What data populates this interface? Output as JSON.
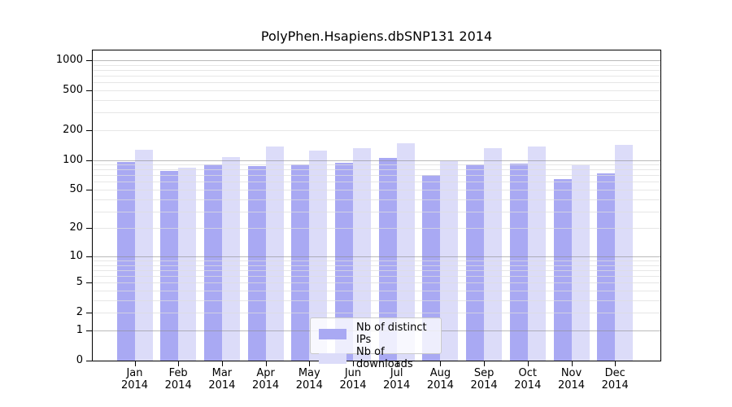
{
  "title": "PolyPhen.Hsapiens.dbSNP131 2014",
  "chart_data": {
    "type": "bar",
    "title": "PolyPhen.Hsapiens.dbSNP131 2014",
    "scale": "log10(1+x)",
    "grid": true,
    "legend_position": "bottom-center",
    "xlabel": "",
    "ylabel": "",
    "ylim": [
      0,
      1300
    ],
    "y_ticks": [
      0,
      1,
      2,
      5,
      10,
      20,
      50,
      100,
      200,
      500,
      1000
    ],
    "categories": [
      "Jan",
      "Feb",
      "Mar",
      "Apr",
      "May",
      "Jun",
      "Jul",
      "Aug",
      "Sep",
      "Oct",
      "Nov",
      "Dec"
    ],
    "year": "2014",
    "series": [
      {
        "name": "Nb of distinct IPs",
        "color": "#a9a9f3",
        "values": [
          95,
          78,
          91,
          86,
          91,
          93,
          104,
          71,
          91,
          92,
          64,
          73
        ]
      },
      {
        "name": "Nb of downloads",
        "color": "#dcdcf9",
        "values": [
          127,
          84,
          107,
          136,
          124,
          132,
          148,
          97,
          131,
          137,
          88,
          141
        ]
      }
    ]
  }
}
